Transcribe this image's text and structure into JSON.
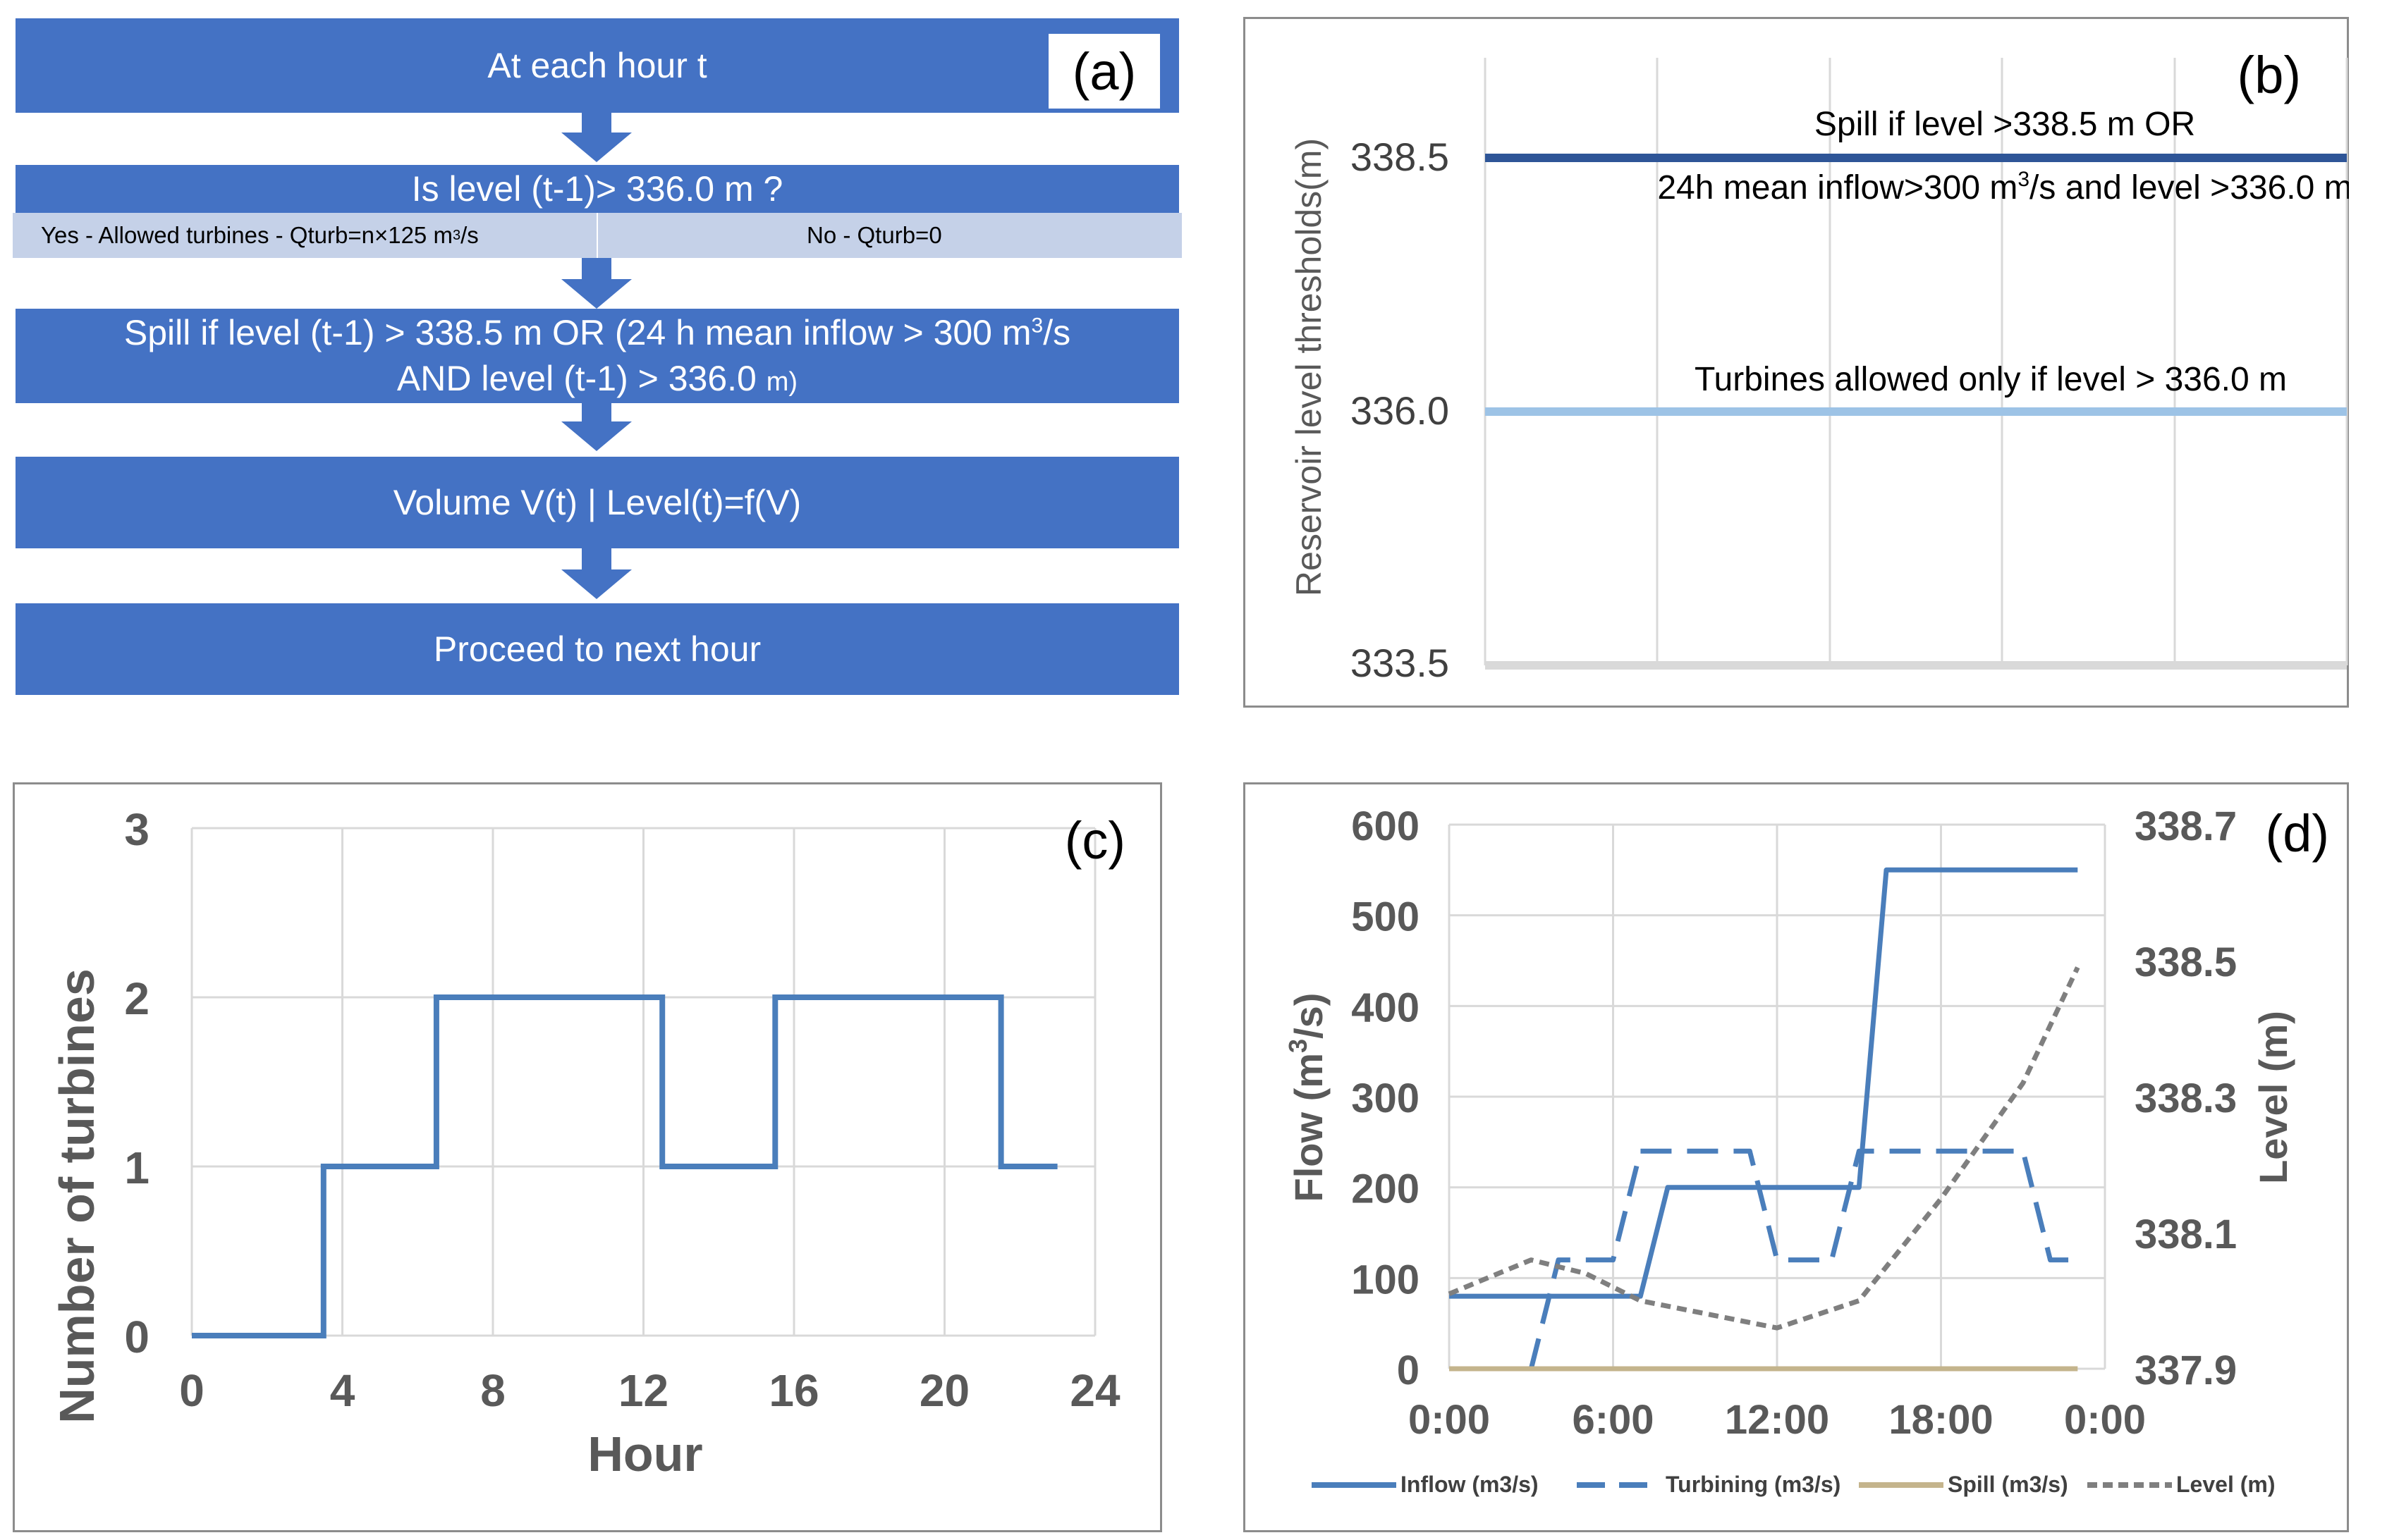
{
  "panel_a": {
    "tag": "(a)",
    "box1": "At each hour t",
    "box2": "Is level (t-1)> 336.0 m ?",
    "yes_prefix": "Yes - Allowed turbines - Qturb=n×125 m",
    "yes_sup": "3",
    "yes_suffix": "/s",
    "no_text": "No - Qturb=0",
    "box3_line1_a": "Spill if level (t-1) > 338.5 m OR (24 h mean inflow > 300 m",
    "box3_line1_sup": "3",
    "box3_line1_b": "/s",
    "box3_line2_a": "AND level (t-1) > 336.0",
    "box3_line2_b": "m)",
    "box4": "Volume V(t) | Level(t)=f(V)",
    "box5": "Proceed to next hour",
    "box_color": "#4472c4"
  },
  "panel_b": {
    "tag": "(b)",
    "ylabel": "Reservoir level thresholds(m)",
    "ticks": [
      "338.5",
      "336.0",
      "333.5"
    ],
    "spill_label": "Spill if level >338.5 m OR",
    "spill_label2_a": "24h mean inflow>300 m",
    "spill_label2_sup": "3",
    "spill_label2_b": "/s and level >336.0 m",
    "turbine_label": "Turbines allowed only if level > 336.0 m",
    "spill_color": "#2e5597",
    "turbine_color": "#9dc3e6"
  },
  "panel_c": {
    "tag": "(c)",
    "chart_data": {
      "type": "line",
      "title": "",
      "xlabel": "Hour",
      "ylabel": "Number of turbines",
      "xlim": [
        0,
        24
      ],
      "ylim": [
        0,
        3
      ],
      "xticks": [
        "0",
        "4",
        "8",
        "12",
        "16",
        "20",
        "24"
      ],
      "yticks": [
        "0",
        "1",
        "2",
        "3"
      ],
      "series": [
        {
          "name": "Number of turbines",
          "color": "#4a7ebb",
          "x": [
            0,
            3.5,
            3.5,
            6.5,
            6.5,
            12.5,
            12.5,
            15.5,
            15.5,
            21.5,
            21.5,
            23
          ],
          "y": [
            0,
            0,
            1,
            1,
            2,
            2,
            1,
            1,
            2,
            2,
            1,
            1
          ]
        }
      ]
    }
  },
  "panel_d": {
    "tag": "(d)",
    "ylabel_left_a": "Flow (m",
    "ylabel_left_sup": "3",
    "ylabel_left_b": "/s)",
    "chart_data": {
      "type": "line",
      "xlabel": "",
      "ylabel": "Flow (m3/s)",
      "ylabel_right": "Level (m)",
      "xlim": [
        0,
        24
      ],
      "ylim": [
        0,
        600
      ],
      "ylim_right": [
        337.9,
        338.7
      ],
      "xticks": [
        "0:00",
        "6:00",
        "12:00",
        "18:00",
        "0:00"
      ],
      "yticks": [
        "0",
        "100",
        "200",
        "300",
        "400",
        "500",
        "600"
      ],
      "yticks_right": [
        "337.9",
        "338.1",
        "338.3",
        "338.5",
        "338.7"
      ],
      "series": [
        {
          "name": "Inflow (m3/s)",
          "axis": "left",
          "style": "solid",
          "color": "#4a7ebb",
          "x": [
            0,
            7,
            8,
            15,
            16,
            23
          ],
          "y": [
            80,
            80,
            200,
            200,
            550,
            550
          ]
        },
        {
          "name": "Turbining (m3/s)",
          "axis": "left",
          "style": "dashed",
          "color": "#4a7ebb",
          "x": [
            3,
            4,
            6,
            7,
            10,
            11,
            12,
            14,
            15,
            21,
            22,
            23
          ],
          "y": [
            0,
            120,
            120,
            240,
            240,
            240,
            120,
            120,
            240,
            240,
            120,
            120
          ]
        },
        {
          "name": "Spill (m3/s)",
          "axis": "left",
          "style": "solid",
          "color": "#c4b48c",
          "x": [
            0,
            23
          ],
          "y": [
            0,
            0
          ]
        },
        {
          "name": "Level (m)",
          "axis": "right",
          "style": "dotted",
          "color": "#7f7f7f",
          "x": [
            0,
            3,
            5,
            7,
            12,
            15,
            18,
            21,
            23
          ],
          "y": [
            338.01,
            338.06,
            338.04,
            338.0,
            337.96,
            338.0,
            338.15,
            338.32,
            338.49
          ]
        }
      ]
    }
  }
}
